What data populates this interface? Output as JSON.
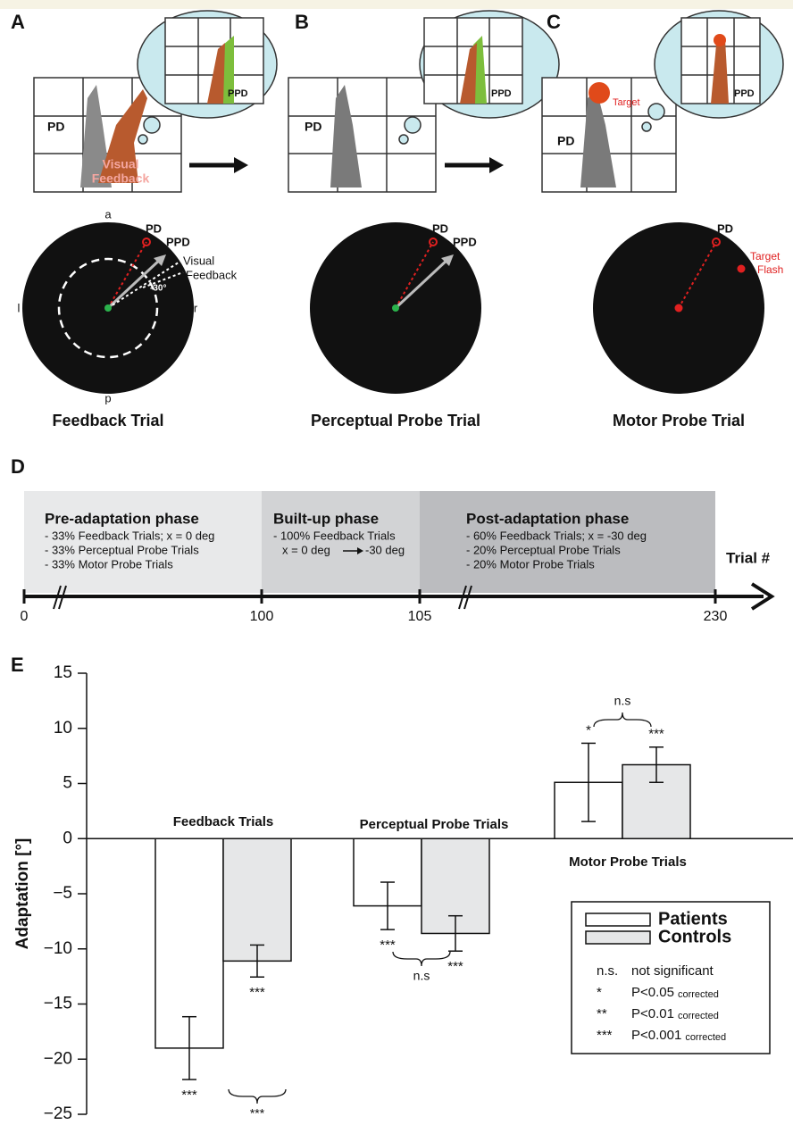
{
  "panel_a": {
    "label": "A",
    "photo": {
      "pd": "PD",
      "ppd": "PPD",
      "feedback": [
        "Visual",
        "Feedback"
      ]
    },
    "circle": {
      "a": "a",
      "l": "l",
      "r": "r",
      "p": "p",
      "pd": "PD",
      "ppd": "PPD",
      "feedback": [
        "Visual",
        "Feedback"
      ],
      "angle": "-30°"
    },
    "caption": "Feedback Trial"
  },
  "panel_b": {
    "label": "B",
    "photo": {
      "pd": "PD",
      "ppd": "PPD"
    },
    "circle": {
      "pd": "PD",
      "ppd": "PPD"
    },
    "caption": "Perceptual Probe Trial"
  },
  "panel_c": {
    "label": "C",
    "photo": {
      "pd": "PD",
      "target": "Target",
      "ppd": "PPD"
    },
    "circle": {
      "pd": "PD",
      "target": [
        "Target",
        "Flash"
      ]
    },
    "caption": "Motor Probe Trial"
  },
  "panel_d": {
    "label": "D",
    "phases": [
      {
        "title": "Pre-adaptation phase",
        "lines": [
          "- 33% Feedback Trials; x = 0 deg",
          "- 33% Perceptual Probe Trials",
          "- 33% Motor Probe Trials"
        ]
      },
      {
        "title": "Built-up phase",
        "lines": [
          "- 100% Feedback Trials"
        ],
        "range": {
          "from": "x = 0 deg",
          "to": "-30 deg"
        }
      },
      {
        "title": "Post-adaptation phase",
        "lines": [
          "- 60% Feedback Trials; x = -30 deg",
          "- 20% Perceptual Probe Trials",
          "- 20% Motor Probe Trials"
        ]
      }
    ],
    "axis": {
      "ticks": [
        "0",
        "100",
        "105",
        "230"
      ],
      "label": "Trial #"
    }
  },
  "chart_data": {
    "type": "bar",
    "label": "E",
    "y_label": "Adaptation [°]",
    "categories": [
      "Feedback Trials",
      "Perceptual Probe Trials",
      "Motor Probe Trials"
    ],
    "series": [
      {
        "name": "Patients",
        "color": "#ffffff",
        "values": [
          -19,
          -6.1,
          5.1
        ],
        "errors": [
          2.85,
          2.15,
          3.55
        ],
        "sig_labels": [
          "***",
          "***",
          "*"
        ]
      },
      {
        "name": "Controls",
        "color": "#e6e7e8",
        "values": [
          -11.1,
          -8.6,
          6.7
        ],
        "errors": [
          1.45,
          1.6,
          1.6
        ],
        "sig_labels": [
          "***",
          "***",
          "***"
        ]
      }
    ],
    "comparisons": [
      "***",
      "n.s",
      "n.s"
    ],
    "ylim": [
      -25,
      15
    ],
    "yticks": [
      {
        "value": -25,
        "label": "−25"
      },
      {
        "value": -20,
        "label": "−20"
      },
      {
        "value": -15,
        "label": "−15"
      },
      {
        "value": -10,
        "label": "−10"
      },
      {
        "value": -5,
        "label": "−5"
      },
      0,
      5,
      10,
      15
    ],
    "legend_notes": [
      {
        "symbol": "n.s.",
        "text": "not significant"
      },
      {
        "symbol": "*",
        "text": "P<0.05",
        "sub": "corrected"
      },
      {
        "symbol": "**",
        "text": "P<0.01",
        "sub": "corrected"
      },
      {
        "symbol": "***",
        "text": "P<0.001",
        "sub": "corrected"
      }
    ]
  }
}
